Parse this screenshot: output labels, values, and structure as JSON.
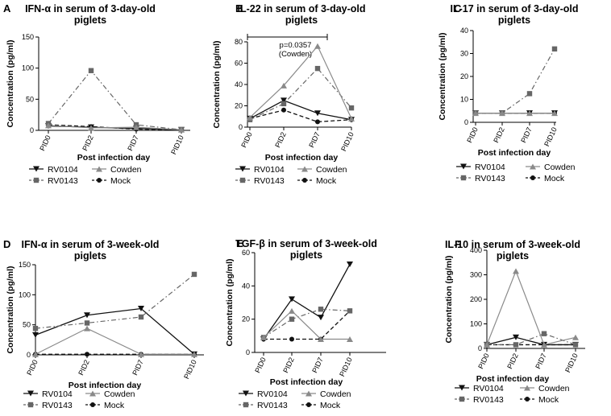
{
  "chart_data": [
    {
      "type": "line",
      "panel_label": "A",
      "title_lines": [
        "IFN-α in serum of 3-day-old",
        "piglets"
      ],
      "xlabel": "Post infection day",
      "ylabel": "Concentration (pg/ml)",
      "categories": [
        "PID0",
        "PID2",
        "PID7",
        "PID10"
      ],
      "ylim": [
        0,
        150
      ],
      "yticks": [
        0,
        50,
        100,
        150
      ],
      "series": [
        {
          "name": "RV0104",
          "values": [
            7,
            5,
            3,
            1
          ]
        },
        {
          "name": "Cowden",
          "values": [
            8,
            4,
            5,
            1
          ]
        },
        {
          "name": "RV0143",
          "values": [
            11,
            96,
            9,
            1
          ]
        },
        {
          "name": "Mock",
          "values": [
            9,
            6,
            2,
            1
          ]
        }
      ]
    },
    {
      "type": "line",
      "panel_label": "B",
      "title_lines": [
        "IL-22 in serum of 3-day-old",
        "piglets"
      ],
      "xlabel": "Post infection day",
      "ylabel": "Concentration (pg/ml)",
      "categories": [
        "PID0",
        "PID2",
        "PID7",
        "PID10"
      ],
      "ylim": [
        0,
        80
      ],
      "yticks": [
        0,
        20,
        40,
        60,
        80
      ],
      "annotation_lines": [
        "p=0.0357",
        "(Cowden)"
      ],
      "series": [
        {
          "name": "RV0104",
          "values": [
            8,
            25,
            13,
            7
          ]
        },
        {
          "name": "Cowden",
          "values": [
            9,
            39,
            76,
            8
          ]
        },
        {
          "name": "RV0143",
          "values": [
            7,
            22,
            55,
            18
          ]
        },
        {
          "name": "Mock",
          "values": [
            8,
            16,
            5,
            7
          ]
        }
      ]
    },
    {
      "type": "line",
      "panel_label": "C",
      "title_lines": [
        "IL-17 in serum of 3-day-old",
        "piglets"
      ],
      "xlabel": "Post infection day",
      "ylabel": "Concentration (pg/ml)",
      "categories": [
        "PID0",
        "PID2",
        "PID7",
        "PID10"
      ],
      "ylim": [
        0,
        40
      ],
      "yticks": [
        0,
        10,
        20,
        30,
        40
      ],
      "series": [
        {
          "name": "RV0104",
          "values": [
            4,
            4,
            4,
            4
          ]
        },
        {
          "name": "Cowden",
          "values": [
            4,
            4,
            4,
            4
          ]
        },
        {
          "name": "RV0143",
          "values": [
            4,
            4,
            12.5,
            32
          ]
        },
        {
          "name": "Mock",
          "values": [
            4,
            4,
            4,
            4
          ]
        }
      ]
    },
    {
      "type": "line",
      "panel_label": "D",
      "title_lines": [
        "IFN-α in serum of 3-week-old",
        "piglets"
      ],
      "xlabel": "Post infection day",
      "ylabel": "Concentration (pg/ml)",
      "categories": [
        "PID0",
        "PID2",
        "PID7",
        "PID10"
      ],
      "ylim": [
        0,
        150
      ],
      "yticks": [
        0,
        50,
        100,
        150
      ],
      "series": [
        {
          "name": "RV0104",
          "values": [
            33,
            66,
            77,
            1
          ]
        },
        {
          "name": "Cowden",
          "values": [
            1,
            44,
            1,
            1
          ]
        },
        {
          "name": "RV0143",
          "values": [
            44,
            53,
            63,
            134
          ]
        },
        {
          "name": "Mock",
          "values": [
            1,
            1,
            1,
            1
          ]
        }
      ]
    },
    {
      "type": "line",
      "panel_label": "E",
      "title_lines": [
        "TGF-β in serum of 3-week-old",
        "piglets"
      ],
      "xlabel": "Post infection day",
      "ylabel": "Concentration (pg/ml)",
      "categories": [
        "PID0",
        "PID2",
        "PID7",
        "PID10"
      ],
      "ylim": [
        0,
        60
      ],
      "yticks": [
        0,
        20,
        40,
        60
      ],
      "series": [
        {
          "name": "RV0104",
          "values": [
            8,
            32,
            21,
            53
          ]
        },
        {
          "name": "Cowden",
          "values": [
            9,
            25,
            8,
            8
          ]
        },
        {
          "name": "RV0143",
          "values": [
            9,
            20,
            26,
            25
          ]
        },
        {
          "name": "Mock",
          "values": [
            8,
            8,
            8,
            25
          ]
        }
      ]
    },
    {
      "type": "line",
      "panel_label": "F",
      "title_lines": [
        "IL-10 in serum of 3-week-old",
        "piglets"
      ],
      "xlabel": "Post infection day",
      "ylabel": "Concentration (pg/ml)",
      "categories": [
        "PID0",
        "PID2",
        "PID7",
        "PID10"
      ],
      "ylim": [
        0,
        400
      ],
      "yticks": [
        0,
        100,
        200,
        300,
        400
      ],
      "series": [
        {
          "name": "RV0104",
          "values": [
            15,
            45,
            15,
            15
          ]
        },
        {
          "name": "Cowden",
          "values": [
            15,
            315,
            15,
            45
          ]
        },
        {
          "name": "RV0143",
          "values": [
            15,
            15,
            60,
            15
          ]
        },
        {
          "name": "Mock",
          "values": [
            15,
            15,
            15,
            15
          ]
        }
      ]
    }
  ]
}
